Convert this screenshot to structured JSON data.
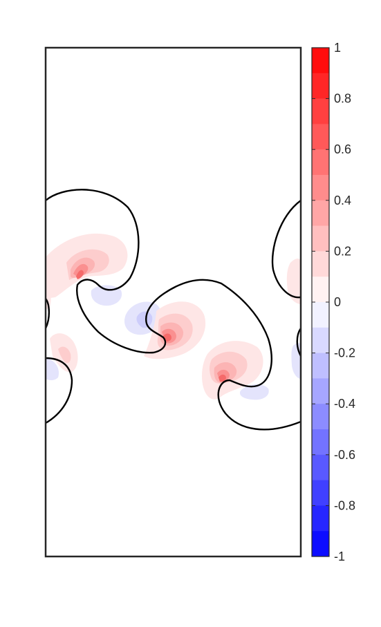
{
  "chart_data": {
    "type": "heatmap",
    "title": "",
    "xlabel": "",
    "ylabel": "",
    "axes_ticks_visible": false,
    "colorbar": {
      "limits": [
        -1,
        1
      ],
      "levels": 20,
      "colormap": "blue-white-red",
      "colors": {
        "negative": "#0000ff",
        "zero": "#ffffff",
        "positive": "#ff0000"
      },
      "tick_values": [
        1,
        0.8,
        0.6,
        0.4,
        0.2,
        0,
        -0.2,
        -0.4,
        -0.6,
        -0.8,
        -1
      ],
      "tick_labels": [
        "1",
        "0.8",
        "0.6",
        "0.4",
        "0.2",
        "0",
        "-0.2",
        "-0.4",
        "-0.6",
        "-0.8",
        "-1"
      ]
    },
    "interface_contour": {
      "color": "#000000",
      "style": "solid"
    },
    "frame_color": "#262626"
  }
}
